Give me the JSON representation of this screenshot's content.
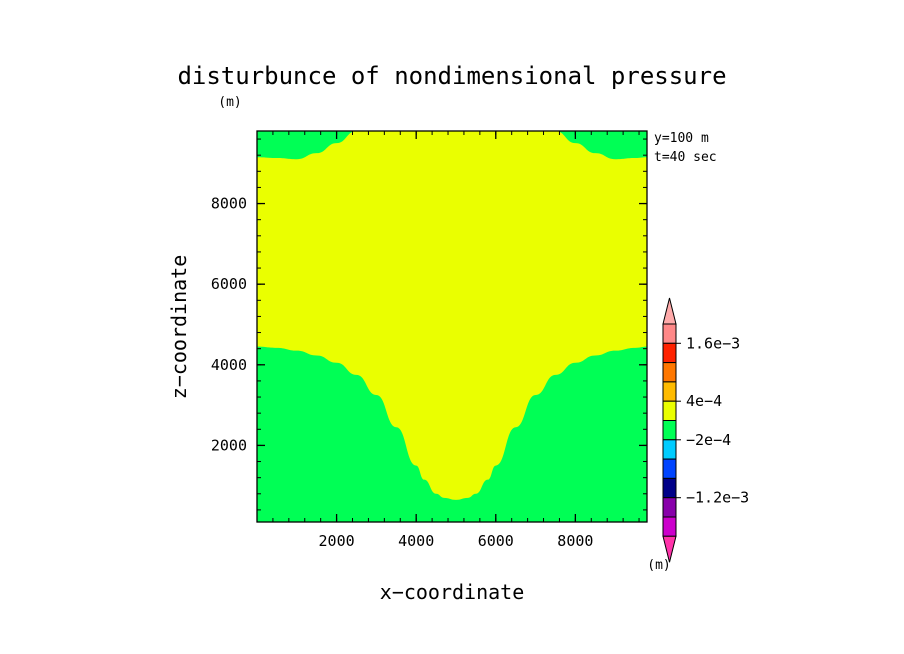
{
  "chart_data": {
    "type": "contour",
    "title": "disturbunce of nondimensional pressure",
    "y_unit_label": "(m)",
    "x_unit_label": "(m)",
    "xlabel": "x−coordinate",
    "ylabel": "z−coordinate",
    "annotations": [
      "y=100 m",
      "t=40 sec"
    ],
    "xlim": [
      0,
      9800
    ],
    "ylim": [
      100,
      9800
    ],
    "xticks": [
      {
        "value": 2000,
        "label": "2000"
      },
      {
        "value": 4000,
        "label": "4000"
      },
      {
        "value": 6000,
        "label": "6000"
      },
      {
        "value": 8000,
        "label": "8000"
      }
    ],
    "yticks": [
      {
        "value": 2000,
        "label": "2000"
      },
      {
        "value": 4000,
        "label": "4000"
      },
      {
        "value": 6000,
        "label": "6000"
      },
      {
        "value": 8000,
        "label": "8000"
      }
    ],
    "x_minor_step": 400,
    "y_minor_step": 400,
    "background_color": "#00ff55",
    "regions": [
      {
        "name": "4e-4 to 8e-4 band",
        "color": "#eaff00",
        "boundary_x": [
          0,
          500,
          1000,
          1500,
          2000,
          2500,
          3000,
          3500,
          4000,
          4200,
          4500,
          4700,
          5000,
          5300,
          5500,
          5800,
          6000,
          6500,
          7000,
          7500,
          8000,
          8500,
          9000,
          9500,
          9800
        ],
        "lower_z": [
          4450,
          4420,
          4350,
          4230,
          4050,
          3750,
          3250,
          2450,
          1500,
          1150,
          800,
          700,
          650,
          700,
          800,
          1150,
          1500,
          2450,
          3250,
          3750,
          4050,
          4230,
          4350,
          4420,
          4450
        ],
        "upper_z": [
          9150,
          9130,
          9100,
          9250,
          9500,
          9800,
          9800,
          9800,
          9800,
          9800,
          9800,
          9800,
          9800,
          9800,
          9800,
          9800,
          9800,
          9800,
          9800,
          9800,
          9500,
          9250,
          9100,
          9130,
          9150
        ]
      }
    ],
    "colorbar": {
      "colors": [
        "#cc00cc",
        "#8800aa",
        "#000088",
        "#0044ff",
        "#00ccff",
        "#00ff55",
        "#eaff00",
        "#ffbb00",
        "#ff7700",
        "#ff2200",
        "#ff8888"
      ],
      "top_arrow_color": "#ffaaaa",
      "bottom_arrow_color": "#ff33aa",
      "levels": [
        -0.0016,
        -0.0012,
        -0.0008,
        -0.0004,
        -0.0002,
        0,
        0.0004,
        0.0008,
        0.0012,
        0.0016,
        0.002
      ],
      "labels": [
        {
          "level": 0.0016,
          "text": "1.6e−3"
        },
        {
          "level": 0.0004,
          "text": "4e−4"
        },
        {
          "level": -0.0002,
          "text": "−2e−4"
        },
        {
          "level": -0.0012,
          "text": "−1.2e−3"
        }
      ]
    }
  }
}
